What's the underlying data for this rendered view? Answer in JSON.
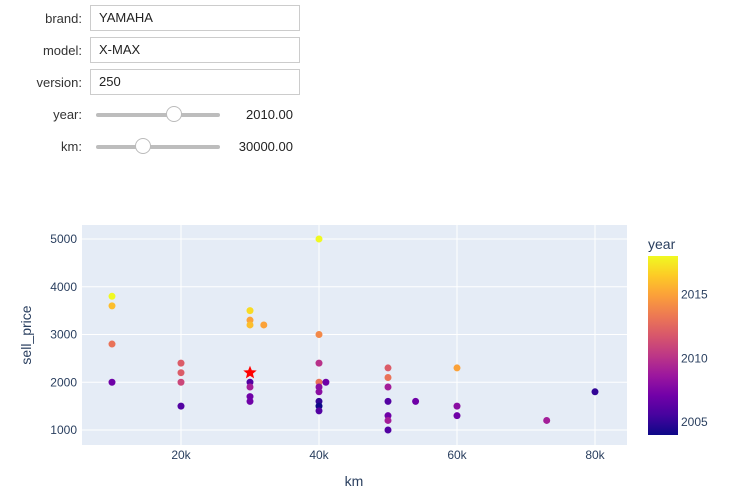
{
  "form": {
    "brand": {
      "label": "brand:",
      "value": "YAMAHA"
    },
    "model": {
      "label": "model:",
      "value": "X-MAX"
    },
    "version": {
      "label": "version:",
      "value": "250"
    },
    "year": {
      "label": "year:",
      "value_text": "2010.00",
      "position_pct": 63
    },
    "km": {
      "label": "km:",
      "value_text": "30000.00",
      "position_pct": 38
    }
  },
  "chart_data": {
    "type": "scatter",
    "title": "",
    "xlabel": "km",
    "ylabel": "sell_price",
    "xlim": [
      5500,
      84500
    ],
    "ylim": [
      700,
      5300
    ],
    "x_ticks": [
      {
        "v": 20000,
        "label": "20k"
      },
      {
        "v": 40000,
        "label": "40k"
      },
      {
        "v": 60000,
        "label": "60k"
      },
      {
        "v": 80000,
        "label": "80k"
      }
    ],
    "y_ticks": [
      {
        "v": 1000,
        "label": "1000"
      },
      {
        "v": 2000,
        "label": "2000"
      },
      {
        "v": 3000,
        "label": "3000"
      },
      {
        "v": 4000,
        "label": "4000"
      },
      {
        "v": 5000,
        "label": "5000"
      }
    ],
    "grid": true,
    "colorbar": {
      "title": "year",
      "range": [
        2004,
        2018
      ],
      "ticks": [
        {
          "v": 2005,
          "label": "2005"
        },
        {
          "v": 2010,
          "label": "2010"
        },
        {
          "v": 2015,
          "label": "2015"
        }
      ]
    },
    "points": [
      {
        "km": 10000,
        "price": 3800,
        "year": 2018
      },
      {
        "km": 10000,
        "price": 3600,
        "year": 2016
      },
      {
        "km": 10000,
        "price": 2800,
        "year": 2013
      },
      {
        "km": 10000,
        "price": 2000,
        "year": 2007
      },
      {
        "km": 20000,
        "price": 2400,
        "year": 2012
      },
      {
        "km": 20000,
        "price": 2200,
        "year": 2012
      },
      {
        "km": 20000,
        "price": 2000,
        "year": 2011
      },
      {
        "km": 20000,
        "price": 1500,
        "year": 2006
      },
      {
        "km": 30000,
        "price": 3500,
        "year": 2017
      },
      {
        "km": 30000,
        "price": 3300,
        "year": 2015
      },
      {
        "km": 30000,
        "price": 3200,
        "year": 2016
      },
      {
        "km": 32000,
        "price": 3200,
        "year": 2015
      },
      {
        "km": 30000,
        "price": 2000,
        "year": 2006
      },
      {
        "km": 30000,
        "price": 1900,
        "year": 2009
      },
      {
        "km": 30000,
        "price": 1700,
        "year": 2007
      },
      {
        "km": 30000,
        "price": 1600,
        "year": 2007
      },
      {
        "km": 40000,
        "price": 5000,
        "year": 2018
      },
      {
        "km": 40000,
        "price": 3000,
        "year": 2014
      },
      {
        "km": 40000,
        "price": 2400,
        "year": 2010
      },
      {
        "km": 40000,
        "price": 2000,
        "year": 2013
      },
      {
        "km": 41000,
        "price": 2000,
        "year": 2007
      },
      {
        "km": 40000,
        "price": 1900,
        "year": 2008
      },
      {
        "km": 40000,
        "price": 1800,
        "year": 2008
      },
      {
        "km": 40000,
        "price": 1600,
        "year": 2005
      },
      {
        "km": 40000,
        "price": 1500,
        "year": 2004
      },
      {
        "km": 40000,
        "price": 1400,
        "year": 2006
      },
      {
        "km": 50000,
        "price": 2300,
        "year": 2012
      },
      {
        "km": 50000,
        "price": 2100,
        "year": 2013
      },
      {
        "km": 50000,
        "price": 1900,
        "year": 2009
      },
      {
        "km": 50000,
        "price": 1600,
        "year": 2006
      },
      {
        "km": 54000,
        "price": 1600,
        "year": 2007
      },
      {
        "km": 50000,
        "price": 1300,
        "year": 2007
      },
      {
        "km": 50000,
        "price": 1200,
        "year": 2009
      },
      {
        "km": 50000,
        "price": 1000,
        "year": 2006
      },
      {
        "km": 60000,
        "price": 2300,
        "year": 2015
      },
      {
        "km": 60000,
        "price": 1500,
        "year": 2008
      },
      {
        "km": 60000,
        "price": 1300,
        "year": 2007
      },
      {
        "km": 73000,
        "price": 1200,
        "year": 2009
      },
      {
        "km": 80000,
        "price": 1800,
        "year": 2005
      }
    ],
    "highlight": {
      "km": 30000,
      "price": 2200,
      "marker": "star",
      "color": "#ff0000"
    }
  }
}
